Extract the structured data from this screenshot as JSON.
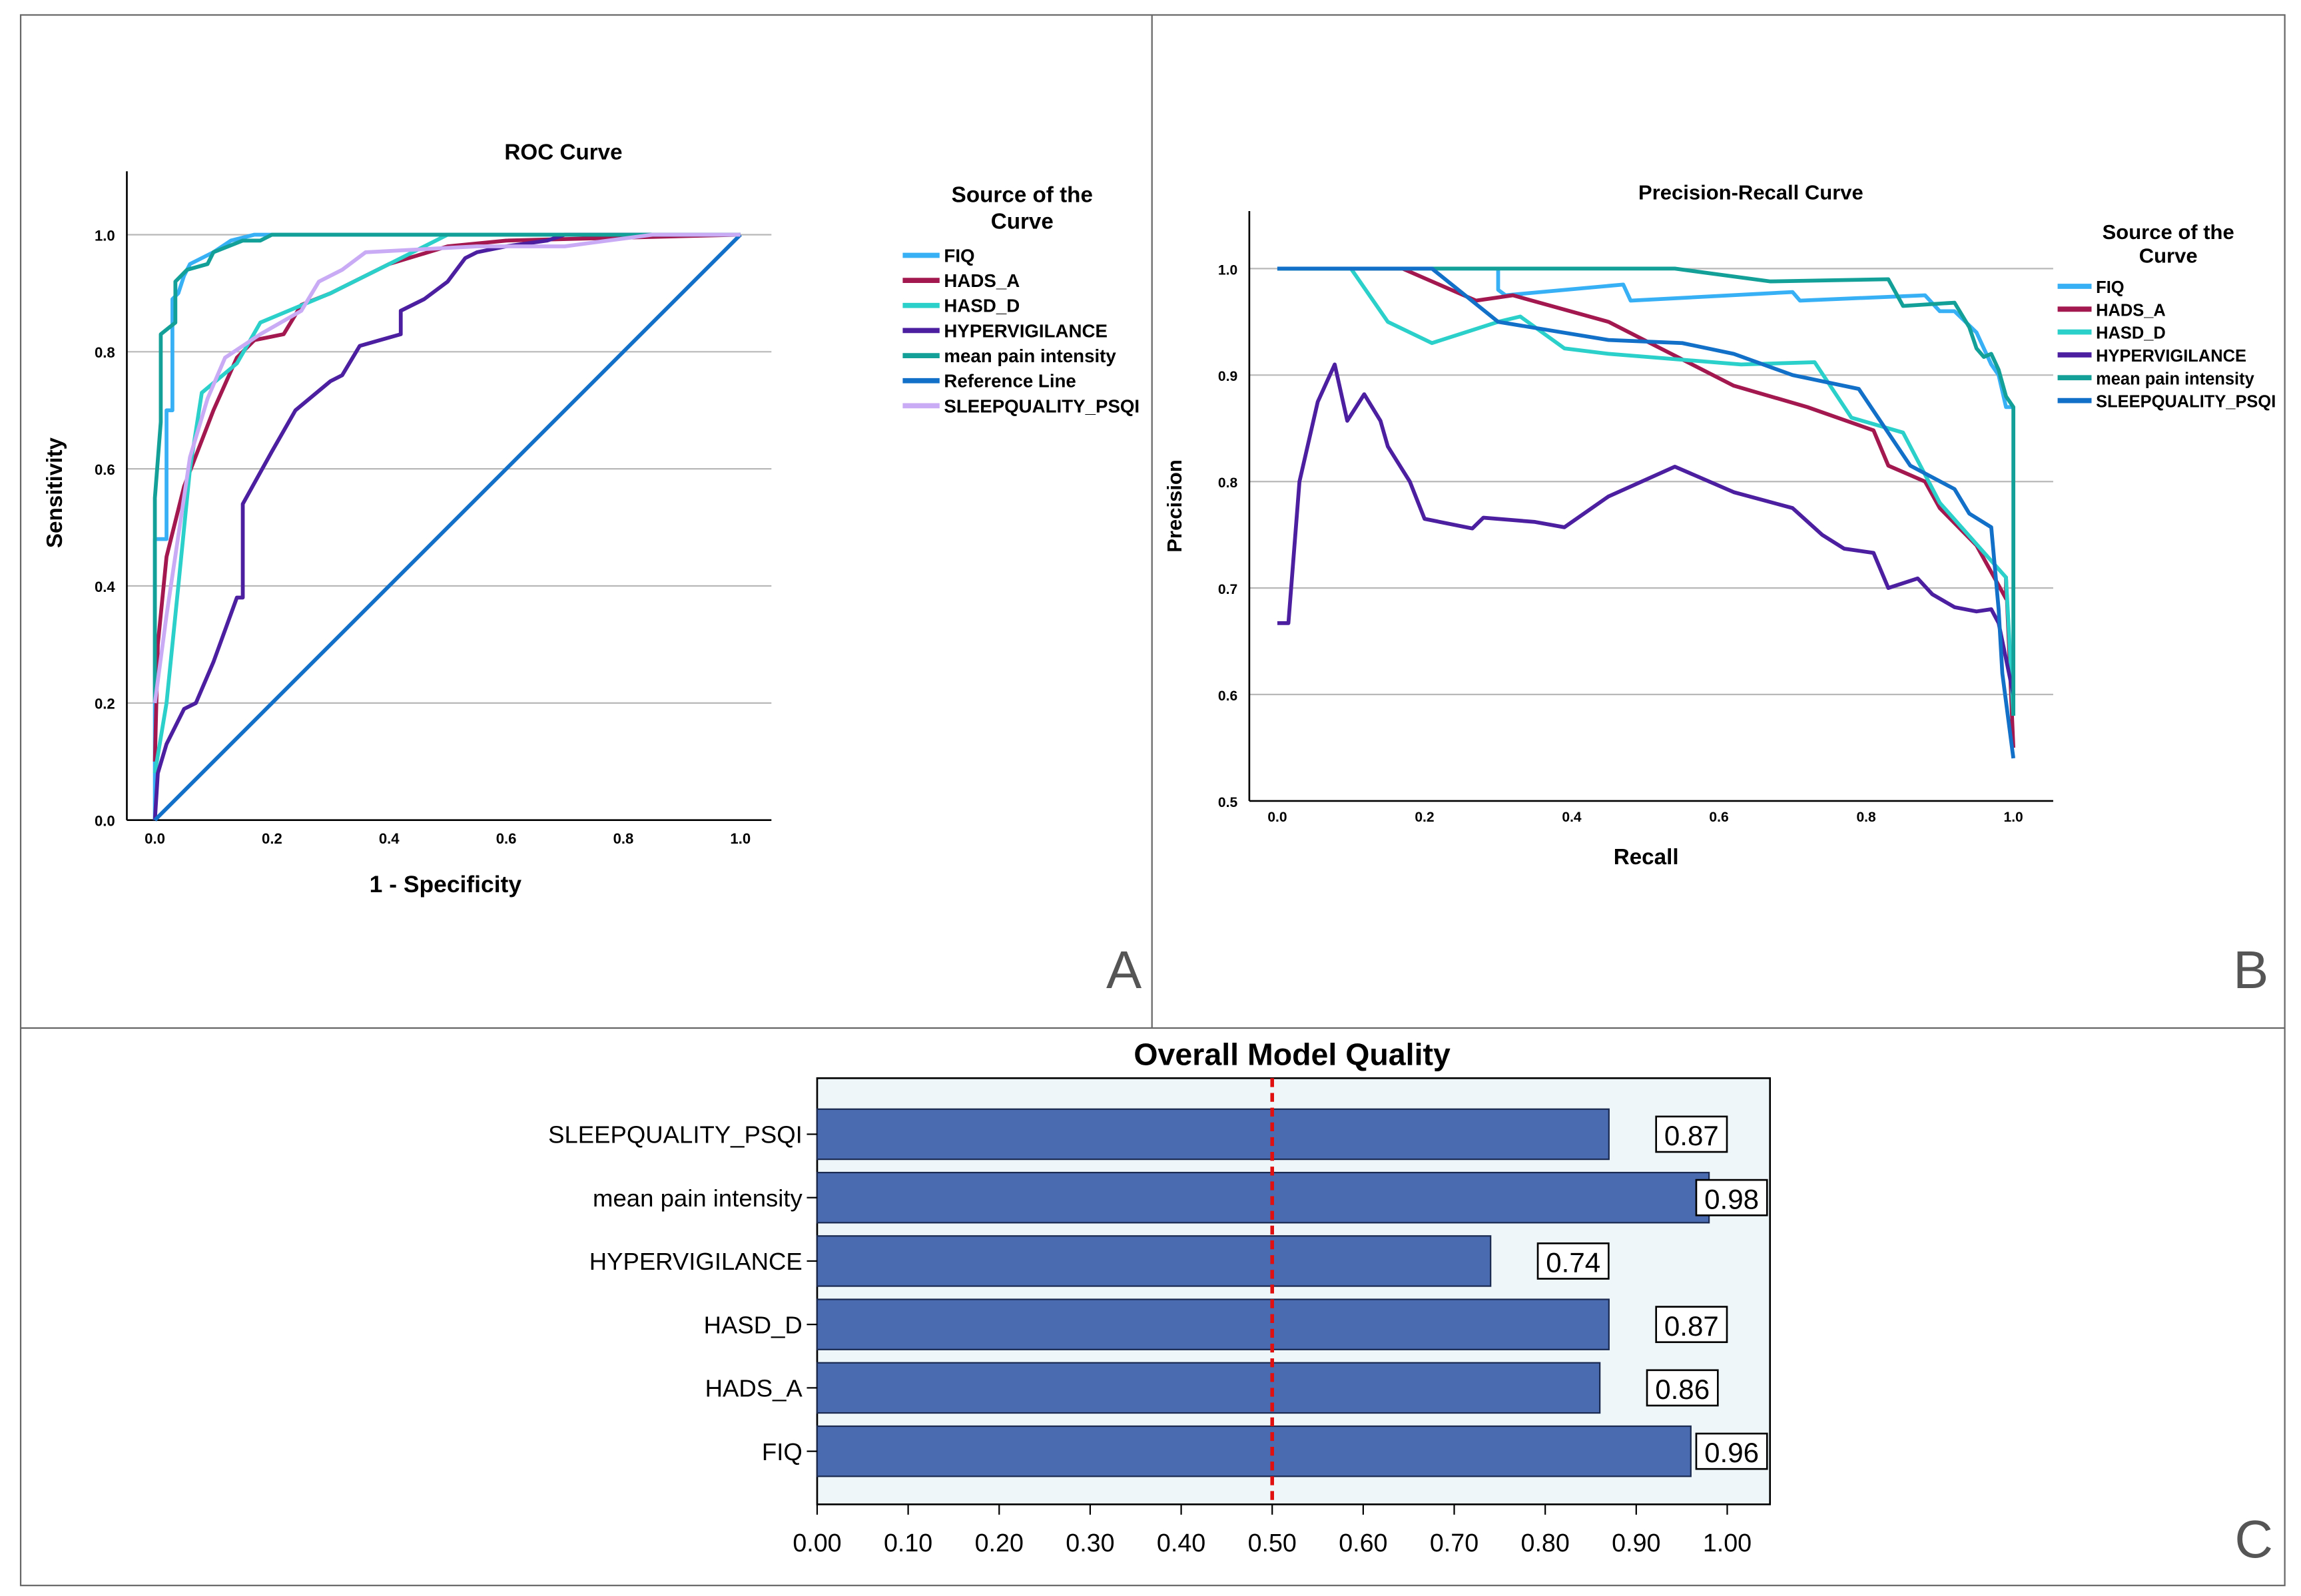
{
  "panels": {
    "a": "A",
    "b": "B",
    "c": "C"
  },
  "chart_data": [
    {
      "type": "line",
      "title": "ROC Curve",
      "xlabel": "1 - Specificity",
      "ylabel": "Sensitivity",
      "xlim": [
        0,
        1
      ],
      "ylim": [
        0,
        1.1
      ],
      "xticks": [
        "0.0",
        "0.2",
        "0.4",
        "0.6",
        "0.8",
        "1.0"
      ],
      "yticks": [
        "0.0",
        "0.2",
        "0.4",
        "0.6",
        "0.8",
        "1.0"
      ],
      "grid": true,
      "legend_title": "Source of the Curve",
      "legend_position": "right",
      "series": [
        {
          "name": "FIQ",
          "color": "#38b0f5",
          "points": [
            [
              0,
              0
            ],
            [
              0,
              0.48
            ],
            [
              0.02,
              0.48
            ],
            [
              0.02,
              0.7
            ],
            [
              0.03,
              0.7
            ],
            [
              0.03,
              0.89
            ],
            [
              0.04,
              0.9
            ],
            [
              0.05,
              0.93
            ],
            [
              0.06,
              0.95
            ],
            [
              0.1,
              0.97
            ],
            [
              0.13,
              0.99
            ],
            [
              0.17,
              1
            ],
            [
              1,
              1
            ]
          ]
        },
        {
          "name": "HADS_A",
          "color": "#a2184f",
          "points": [
            [
              0,
              0.1
            ],
            [
              0.005,
              0.3
            ],
            [
              0.02,
              0.45
            ],
            [
              0.05,
              0.57
            ],
            [
              0.1,
              0.7
            ],
            [
              0.14,
              0.79
            ],
            [
              0.17,
              0.82
            ],
            [
              0.22,
              0.83
            ],
            [
              0.25,
              0.88
            ],
            [
              0.3,
              0.9
            ],
            [
              0.4,
              0.95
            ],
            [
              0.5,
              0.98
            ],
            [
              0.6,
              0.99
            ],
            [
              1,
              1
            ]
          ]
        },
        {
          "name": "HASD_D",
          "color": "#2ad0c9",
          "points": [
            [
              0,
              0.08
            ],
            [
              0.02,
              0.2
            ],
            [
              0.04,
              0.4
            ],
            [
              0.06,
              0.6
            ],
            [
              0.08,
              0.73
            ],
            [
              0.14,
              0.78
            ],
            [
              0.18,
              0.85
            ],
            [
              0.3,
              0.9
            ],
            [
              0.4,
              0.95
            ],
            [
              0.5,
              1
            ],
            [
              1,
              1
            ]
          ]
        },
        {
          "name": "HYPERVIGILANCE",
          "color": "#4b1fa0",
          "points": [
            [
              0,
              0
            ],
            [
              0.005,
              0.08
            ],
            [
              0.02,
              0.13
            ],
            [
              0.05,
              0.19
            ],
            [
              0.07,
              0.2
            ],
            [
              0.1,
              0.27
            ],
            [
              0.14,
              0.38
            ],
            [
              0.15,
              0.38
            ],
            [
              0.15,
              0.54
            ],
            [
              0.2,
              0.63
            ],
            [
              0.24,
              0.7
            ],
            [
              0.3,
              0.75
            ],
            [
              0.32,
              0.76
            ],
            [
              0.35,
              0.81
            ],
            [
              0.42,
              0.83
            ],
            [
              0.42,
              0.87
            ],
            [
              0.46,
              0.89
            ],
            [
              0.5,
              0.92
            ],
            [
              0.53,
              0.96
            ],
            [
              0.55,
              0.97
            ],
            [
              0.6,
              0.98
            ],
            [
              0.67,
              0.99
            ],
            [
              0.7,
              1
            ],
            [
              1,
              1
            ]
          ]
        },
        {
          "name": "mean pain intensity",
          "color": "#13a098",
          "points": [
            [
              0,
              0.2
            ],
            [
              0,
              0.55
            ],
            [
              0.01,
              0.68
            ],
            [
              0.01,
              0.83
            ],
            [
              0.035,
              0.85
            ],
            [
              0.035,
              0.92
            ],
            [
              0.055,
              0.94
            ],
            [
              0.09,
              0.95
            ],
            [
              0.1,
              0.97
            ],
            [
              0.15,
              0.99
            ],
            [
              0.18,
              0.99
            ],
            [
              0.2,
              1
            ],
            [
              1,
              1
            ]
          ]
        },
        {
          "name": "Reference Line",
          "color": "#1370c8",
          "points": [
            [
              0,
              0
            ],
            [
              1,
              1
            ]
          ]
        },
        {
          "name": "SLEEPQUALITY_PSQI",
          "color": "#c9aaf5",
          "points": [
            [
              0,
              0.2
            ],
            [
              0.02,
              0.35
            ],
            [
              0.06,
              0.62
            ],
            [
              0.09,
              0.72
            ],
            [
              0.12,
              0.79
            ],
            [
              0.18,
              0.83
            ],
            [
              0.25,
              0.87
            ],
            [
              0.28,
              0.92
            ],
            [
              0.32,
              0.94
            ],
            [
              0.36,
              0.97
            ],
            [
              0.55,
              0.98
            ],
            [
              0.7,
              0.98
            ],
            [
              0.85,
              1
            ],
            [
              1,
              1
            ]
          ]
        }
      ]
    },
    {
      "type": "line",
      "title": "Precision-Recall Curve",
      "xlabel": "Recall",
      "ylabel": "Precision",
      "xlim": [
        0,
        1
      ],
      "ylim": [
        0.5,
        1.05
      ],
      "xticks": [
        "0.0",
        "0.2",
        "0.4",
        "0.6",
        "0.8",
        "1.0"
      ],
      "yticks": [
        "0.5",
        "0.6",
        "0.7",
        "0.8",
        "0.9",
        "1.0"
      ],
      "grid": true,
      "legend_title": "Source of the Curve",
      "legend_position": "right",
      "series": [
        {
          "name": "FIQ",
          "color": "#38b0f5",
          "points": [
            [
              0,
              1
            ],
            [
              0.3,
              1
            ],
            [
              0.3,
              0.98
            ],
            [
              0.31,
              0.975
            ],
            [
              0.47,
              0.985
            ],
            [
              0.48,
              0.97
            ],
            [
              0.7,
              0.978
            ],
            [
              0.71,
              0.97
            ],
            [
              0.88,
              0.975
            ],
            [
              0.9,
              0.96
            ],
            [
              0.92,
              0.96
            ],
            [
              0.95,
              0.94
            ],
            [
              0.97,
              0.91
            ],
            [
              0.98,
              0.9
            ],
            [
              0.99,
              0.87
            ],
            [
              1,
              0.87
            ]
          ]
        },
        {
          "name": "HADS_A",
          "color": "#a2184f",
          "points": [
            [
              0,
              1
            ],
            [
              0.17,
              1
            ],
            [
              0.27,
              0.97
            ],
            [
              0.32,
              0.975
            ],
            [
              0.45,
              0.95
            ],
            [
              0.62,
              0.89
            ],
            [
              0.72,
              0.87
            ],
            [
              0.81,
              0.848
            ],
            [
              0.83,
              0.815
            ],
            [
              0.88,
              0.8
            ],
            [
              0.9,
              0.775
            ],
            [
              0.95,
              0.74
            ],
            [
              0.99,
              0.69
            ],
            [
              0.99,
              0.71
            ],
            [
              1,
              0.55
            ]
          ]
        },
        {
          "name": "HASD_D",
          "color": "#2ad0c9",
          "points": [
            [
              0,
              1
            ],
            [
              0.1,
              1
            ],
            [
              0.15,
              0.95
            ],
            [
              0.21,
              0.93
            ],
            [
              0.3,
              0.95
            ],
            [
              0.33,
              0.955
            ],
            [
              0.39,
              0.925
            ],
            [
              0.45,
              0.92
            ],
            [
              0.63,
              0.91
            ],
            [
              0.73,
              0.912
            ],
            [
              0.78,
              0.86
            ],
            [
              0.85,
              0.846
            ],
            [
              0.9,
              0.78
            ],
            [
              0.99,
              0.71
            ],
            [
              1,
              0.58
            ]
          ]
        },
        {
          "name": "HYPERVIGILANCE",
          "color": "#4b1fa0",
          "points": [
            [
              0,
              0.667
            ],
            [
              0.015,
              0.667
            ],
            [
              0.03,
              0.8
            ],
            [
              0.055,
              0.875
            ],
            [
              0.078,
              0.91
            ],
            [
              0.095,
              0.857
            ],
            [
              0.118,
              0.882
            ],
            [
              0.14,
              0.857
            ],
            [
              0.15,
              0.833
            ],
            [
              0.18,
              0.8
            ],
            [
              0.2,
              0.765
            ],
            [
              0.265,
              0.756
            ],
            [
              0.28,
              0.766
            ],
            [
              0.35,
              0.762
            ],
            [
              0.39,
              0.757
            ],
            [
              0.45,
              0.786
            ],
            [
              0.54,
              0.814
            ],
            [
              0.62,
              0.79
            ],
            [
              0.7,
              0.775
            ],
            [
              0.74,
              0.75
            ],
            [
              0.77,
              0.737
            ],
            [
              0.81,
              0.733
            ],
            [
              0.83,
              0.7
            ],
            [
              0.87,
              0.709
            ],
            [
              0.89,
              0.694
            ],
            [
              0.92,
              0.682
            ],
            [
              0.95,
              0.678
            ],
            [
              0.97,
              0.68
            ],
            [
              0.98,
              0.667
            ],
            [
              1,
              0.6
            ]
          ]
        },
        {
          "name": "mean pain intensity",
          "color": "#13a098",
          "points": [
            [
              0,
              1
            ],
            [
              0.54,
              1
            ],
            [
              0.67,
              0.988
            ],
            [
              0.83,
              0.99
            ],
            [
              0.85,
              0.965
            ],
            [
              0.92,
              0.968
            ],
            [
              0.94,
              0.945
            ],
            [
              0.95,
              0.925
            ],
            [
              0.96,
              0.917
            ],
            [
              0.97,
              0.92
            ],
            [
              0.98,
              0.905
            ],
            [
              0.99,
              0.88
            ],
            [
              1,
              0.87
            ],
            [
              1,
              0.58
            ]
          ]
        },
        {
          "name": "SLEEPQUALITY_PSQI",
          "color": "#1370c8",
          "points": [
            [
              0,
              1
            ],
            [
              0.21,
              1
            ],
            [
              0.3,
              0.95
            ],
            [
              0.45,
              0.933
            ],
            [
              0.55,
              0.93
            ],
            [
              0.62,
              0.92
            ],
            [
              0.7,
              0.9
            ],
            [
              0.79,
              0.887
            ],
            [
              0.86,
              0.815
            ],
            [
              0.92,
              0.793
            ],
            [
              0.94,
              0.77
            ],
            [
              0.97,
              0.757
            ],
            [
              0.98,
              0.68
            ],
            [
              0.985,
              0.62
            ],
            [
              1,
              0.54
            ]
          ]
        }
      ]
    },
    {
      "type": "bar",
      "orientation": "horizontal",
      "title": "Overall Model Quality",
      "categories": [
        "SLEEPQUALITY_PSQI",
        "mean pain intensity",
        "HYPERVIGILANCE",
        "HASD_D",
        "HADS_A",
        "FIQ"
      ],
      "values": [
        0.87,
        0.98,
        0.74,
        0.87,
        0.86,
        0.96
      ],
      "value_labels": [
        "0.87",
        "0.98",
        "0.74",
        "0.87",
        "0.86",
        "0.96"
      ],
      "xlim": [
        0,
        1.05
      ],
      "xticks": [
        "0.00",
        "0.10",
        "0.20",
        "0.30",
        "0.40",
        "0.50",
        "0.60",
        "0.70",
        "0.80",
        "0.90",
        "1.00"
      ],
      "reference_line": 0.5,
      "bar_color": "#4a6bb0",
      "reference_color": "#e01010",
      "background": "#eef6f9"
    }
  ]
}
